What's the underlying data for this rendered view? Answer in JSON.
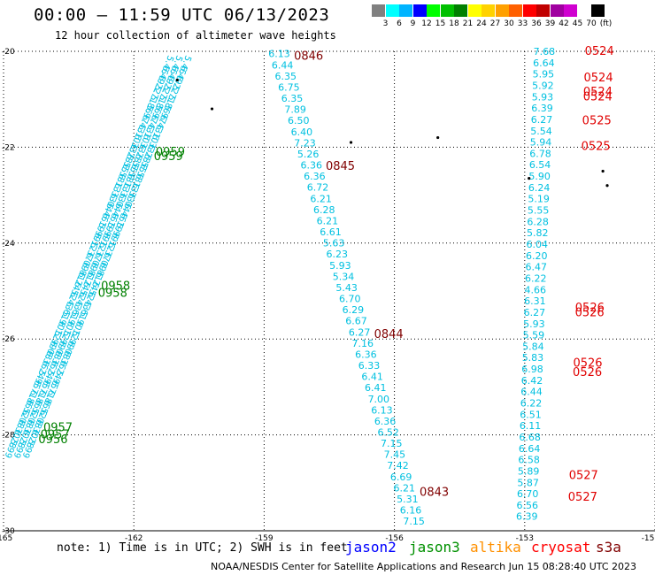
{
  "title": "00:00 – 11:59 UTC 06/13/2023",
  "subtitle": "12 hour collection of altimeter wave heights",
  "legend": {
    "unit": "(ft)",
    "items": [
      {
        "label": "3",
        "color": "#808080"
      },
      {
        "label": "6",
        "color": "#00ffff"
      },
      {
        "label": "9",
        "color": "#00b4ff"
      },
      {
        "label": "12",
        "color": "#0000ff"
      },
      {
        "label": "15",
        "color": "#00ff00"
      },
      {
        "label": "18",
        "color": "#00c000"
      },
      {
        "label": "21",
        "color": "#008000"
      },
      {
        "label": "24",
        "color": "#ffff00"
      },
      {
        "label": "27",
        "color": "#ffd200"
      },
      {
        "label": "30",
        "color": "#ffa000"
      },
      {
        "label": "33",
        "color": "#ff6000"
      },
      {
        "label": "36",
        "color": "#ff0000"
      },
      {
        "label": "39",
        "color": "#c00000"
      },
      {
        "label": "42",
        "color": "#a000a0"
      },
      {
        "label": "45",
        "color": "#d000d0"
      },
      {
        "label": "70",
        "color": "#ffffff"
      },
      {
        "label": "",
        "color": "#000000"
      }
    ]
  },
  "note": "note: 1) Time is in UTC; 2) SWH is in feet",
  "satellites": [
    {
      "name": "jason2",
      "color": "#0000ff"
    },
    {
      "name": "jason3",
      "color": "#009000"
    },
    {
      "name": "altika",
      "color": "#ff9000"
    },
    {
      "name": "cryosat",
      "color": "#ff0000"
    },
    {
      "name": "s3a",
      "color": "#800000"
    }
  ],
  "credit": "NOAA/NESDIS Center for Satellite Applications and Research   Jun 15 08:28:40 UTC 2023",
  "chart_data": {
    "type": "scatter",
    "xlim": [
      -165,
      -150
    ],
    "ylim": [
      -30,
      -20
    ],
    "x_ticks": [
      "-165",
      "-162",
      "-159",
      "-156",
      "-153",
      "-15"
    ],
    "y_ticks": [
      "-20",
      "-22",
      "-24",
      "-26",
      "-28",
      "-30"
    ],
    "grid": true,
    "tracks": [
      {
        "satellite": "s3a",
        "color": "#00c0e0",
        "lon_start": -158.9,
        "lat_start": -20.05,
        "lon_end": -155.8,
        "lat_end": -29.8,
        "values": [
          "6.13",
          "6.44",
          "6.35",
          "6.75",
          "6.35",
          "7.89",
          "6.50",
          "6.40",
          "7.23",
          "5.26",
          "6.36",
          "6.36",
          "6.72",
          "6.21",
          "6.28",
          "6.21",
          "6.61",
          "5.63",
          "6.23",
          "5.93",
          "5.34",
          "5.43",
          "6.70",
          "6.29",
          "6.67",
          "6.27",
          "7.16",
          "6.36",
          "6.33",
          "6.41",
          "6.41",
          "7.00",
          "6.13",
          "6.36",
          "6.52",
          "7.15",
          "7.45",
          "7.42",
          "6.69",
          "6.21",
          "5.31",
          "6.16",
          "7.15"
        ],
        "time_labels": [
          {
            "text": "0846",
            "lat": -20.1
          },
          {
            "text": "0845",
            "lat": -22.4
          },
          {
            "text": "0844",
            "lat": -25.9
          },
          {
            "text": "0843",
            "lat": -29.2
          }
        ],
        "time_color": "#800000"
      },
      {
        "satellite": "cryosat",
        "color": "#00c0e0",
        "lon_start": -152.8,
        "lat_start": -20.0,
        "lon_end": -153.2,
        "lat_end": -29.7,
        "values": [
          "7.68",
          "6.64",
          "5.95",
          "5.92",
          "5.93",
          "6.39",
          "6.27",
          "5.54",
          "5.94",
          "6.78",
          "6.54",
          "5.90",
          "6.24",
          "5.19",
          "5.55",
          "6.28",
          "5.82",
          "6.04",
          "6.20",
          "6.47",
          "6.22",
          "4.66",
          "6.31",
          "6.27",
          "5.93",
          "5.59",
          "5.84",
          "5.83",
          "6.98",
          "6.42",
          "6.44",
          "6.22",
          "6.51",
          "6.11",
          "6.68",
          "6.64",
          "6.58",
          "5.89",
          "5.87",
          "6.70",
          "6.56",
          "6.39"
        ],
        "time_labels": [
          {
            "text": "0524",
            "lat": -20.0
          },
          {
            "text": "0524",
            "lat": -20.55
          },
          {
            "text": "0524",
            "lat": -20.85
          },
          {
            "text": "0524",
            "lat": -20.95
          },
          {
            "text": "0525",
            "lat": -21.45
          },
          {
            "text": "0525",
            "lat": -21.98
          },
          {
            "text": "0526",
            "lat": -25.35
          },
          {
            "text": "0526",
            "lat": -25.45
          },
          {
            "text": "0526",
            "lat": -26.5
          },
          {
            "text": "0526",
            "lat": -26.7
          },
          {
            "text": "0527",
            "lat": -28.85
          },
          {
            "text": "0527",
            "lat": -29.3
          }
        ],
        "time_color": "#e00000"
      },
      {
        "satellite": "jason3",
        "color": "#00c0e0",
        "lon_start": -161.0,
        "lat_start": -20.0,
        "lon_end": -164.6,
        "lat_end": -28.0,
        "parallel_tracks": 3,
        "values": [
          "5.46",
          "6.49",
          "6.22",
          "5.71",
          "5.86",
          "5.97",
          "6.43",
          "6.10",
          "6.33",
          "6.28",
          "6.55",
          "6.58",
          "6.13",
          "6.33",
          "6.04",
          "6.46",
          "6.19",
          "5.99",
          "6.12",
          "6.37",
          "6.09",
          "6.81",
          "6.24",
          "6.52",
          "6.43",
          "6.61",
          "5.90",
          "6.12",
          "5.99",
          "6.08",
          "6.36",
          "6.24",
          "5.95",
          "6.71",
          "6.86",
          "6.52",
          "6.08",
          "6.30",
          "6.28",
          "5.99"
        ],
        "time_labels": [
          {
            "text": "0959",
            "lat": -22.1
          },
          {
            "text": "0959",
            "lat": -22.2
          },
          {
            "text": "0958",
            "lat": -24.9
          },
          {
            "text": "0958",
            "lat": -25.05
          },
          {
            "text": "0957",
            "lat": -27.85
          },
          {
            "text": "0957",
            "lat": -28.0
          },
          {
            "text": "0956",
            "lat": -28.1
          }
        ],
        "time_color": "#008000"
      }
    ],
    "islands": [
      {
        "lon": -161.0,
        "lat": -20.6
      },
      {
        "lon": -160.2,
        "lat": -21.2
      },
      {
        "lon": -157.0,
        "lat": -21.9
      },
      {
        "lon": -155.0,
        "lat": -21.8
      },
      {
        "lon": -152.9,
        "lat": -22.65
      },
      {
        "lon": -151.2,
        "lat": -22.5
      },
      {
        "lon": -151.1,
        "lat": -22.8
      }
    ]
  }
}
